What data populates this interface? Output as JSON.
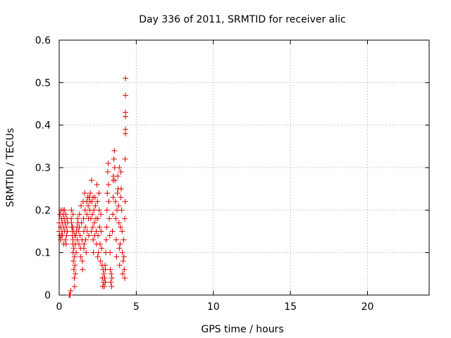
{
  "chart_data": {
    "type": "scatter",
    "title": "Day 336 of 2011, SRMTID for receiver alic",
    "xlabel": "GPS time / hours",
    "ylabel": "SRMTID / TECUs",
    "xlim": [
      0,
      24
    ],
    "ylim": [
      0,
      0.6
    ],
    "x_ticks": [
      0,
      5,
      10,
      15,
      20
    ],
    "x_tick_labels": [
      "0",
      "5",
      "10",
      "15",
      "20"
    ],
    "y_ticks": [
      0,
      0.1,
      0.2,
      0.3,
      0.4,
      0.5,
      0.6
    ],
    "y_tick_labels": [
      "0",
      "0.1",
      "0.2",
      "0.3",
      "0.4",
      "0.5",
      "0.6"
    ],
    "grid": true,
    "marker": "plus",
    "marker_color": "#e00000",
    "series": [
      {
        "name": "SRMTID",
        "points": [
          [
            0.0,
            0.15
          ],
          [
            0.0,
            0.17
          ],
          [
            0.05,
            0.14
          ],
          [
            0.05,
            0.19
          ],
          [
            0.1,
            0.16
          ],
          [
            0.1,
            0.13
          ],
          [
            0.12,
            0.2
          ],
          [
            0.15,
            0.18
          ],
          [
            0.18,
            0.15
          ],
          [
            0.2,
            0.17
          ],
          [
            0.22,
            0.14
          ],
          [
            0.25,
            0.19
          ],
          [
            0.28,
            0.16
          ],
          [
            0.3,
            0.12
          ],
          [
            0.32,
            0.18
          ],
          [
            0.35,
            0.15
          ],
          [
            0.38,
            0.17
          ],
          [
            0.4,
            0.13
          ],
          [
            0.42,
            0.19
          ],
          [
            0.45,
            0.16
          ],
          [
            0.48,
            0.14
          ],
          [
            0.5,
            0.18
          ],
          [
            0.52,
            0.15
          ],
          [
            0.55,
            0.17
          ],
          [
            0.25,
            0.2
          ],
          [
            0.35,
            0.2
          ],
          [
            0.15,
            0.14
          ],
          [
            0.45,
            0.12
          ],
          [
            0.65,
            0.0
          ],
          [
            0.7,
            0.0
          ],
          [
            0.7,
            0.0
          ],
          [
            0.75,
            0.01
          ],
          [
            0.78,
            0.18
          ],
          [
            0.8,
            0.2
          ],
          [
            0.82,
            0.16
          ],
          [
            0.85,
            0.14
          ],
          [
            0.88,
            0.12
          ],
          [
            0.9,
            0.1
          ],
          [
            0.92,
            0.08
          ],
          [
            0.95,
            0.06
          ],
          [
            0.98,
            0.04
          ],
          [
            1.0,
            0.02
          ],
          [
            0.85,
            0.15
          ],
          [
            0.9,
            0.13
          ],
          [
            0.95,
            0.11
          ],
          [
            1.0,
            0.09
          ],
          [
            1.02,
            0.07
          ],
          [
            1.05,
            0.05
          ],
          [
            0.8,
            0.17
          ],
          [
            0.88,
            0.16
          ],
          [
            0.95,
            0.15
          ],
          [
            1.0,
            0.14
          ],
          [
            1.05,
            0.12
          ],
          [
            1.1,
            0.1
          ],
          [
            1.08,
            0.14
          ],
          [
            1.12,
            0.15
          ],
          [
            1.15,
            0.16
          ],
          [
            1.18,
            0.13
          ],
          [
            1.2,
            0.18
          ],
          [
            1.22,
            0.17
          ],
          [
            1.25,
            0.15
          ],
          [
            1.28,
            0.12
          ],
          [
            1.3,
            0.16
          ],
          [
            1.32,
            0.19
          ],
          [
            1.35,
            0.14
          ],
          [
            1.38,
            0.11
          ],
          [
            1.4,
            0.09
          ],
          [
            1.42,
            0.21
          ],
          [
            1.45,
            0.17
          ],
          [
            1.48,
            0.13
          ],
          [
            1.5,
            0.08
          ],
          [
            1.52,
            0.06
          ],
          [
            1.55,
            0.22
          ],
          [
            1.58,
            0.18
          ],
          [
            1.6,
            0.15
          ],
          [
            1.62,
            0.12
          ],
          [
            1.65,
            0.24
          ],
          [
            1.68,
            0.2
          ],
          [
            1.7,
            0.16
          ],
          [
            1.72,
            0.13
          ],
          [
            1.75,
            0.1
          ],
          [
            1.78,
            0.22
          ],
          [
            1.8,
            0.19
          ],
          [
            1.82,
            0.15
          ],
          [
            1.85,
            0.23
          ],
          [
            1.88,
            0.21
          ],
          [
            1.9,
            0.18
          ],
          [
            1.92,
            0.14
          ],
          [
            1.95,
            0.23
          ],
          [
            1.98,
            0.2
          ],
          [
            2.0,
            0.22
          ],
          [
            2.02,
            0.24
          ],
          [
            2.05,
            0.18
          ],
          [
            2.08,
            0.15
          ],
          [
            2.1,
            0.27
          ],
          [
            2.12,
            0.22
          ],
          [
            2.15,
            0.19
          ],
          [
            2.18,
            0.16
          ],
          [
            2.2,
            0.13
          ],
          [
            2.22,
            0.1
          ],
          [
            2.25,
            0.2
          ],
          [
            2.28,
            0.17
          ],
          [
            2.3,
            0.14
          ],
          [
            2.32,
            0.23
          ],
          [
            2.35,
            0.21
          ],
          [
            2.38,
            0.18
          ],
          [
            2.4,
            0.15
          ],
          [
            2.42,
            0.12
          ],
          [
            2.45,
            0.26
          ],
          [
            2.48,
            0.22
          ],
          [
            2.5,
            0.18
          ],
          [
            2.52,
            0.14
          ],
          [
            2.55,
            0.1
          ],
          [
            2.58,
            0.24
          ],
          [
            2.6,
            0.2
          ],
          [
            2.62,
            0.16
          ],
          [
            2.65,
            0.12
          ],
          [
            2.68,
            0.08
          ],
          [
            2.7,
            0.19
          ],
          [
            2.72,
            0.15
          ],
          [
            2.75,
            0.11
          ],
          [
            2.78,
            0.07
          ],
          [
            2.8,
            0.04
          ],
          [
            2.82,
            0.02
          ],
          [
            2.85,
            0.06
          ],
          [
            2.88,
            0.03
          ],
          [
            2.9,
            0.05
          ],
          [
            2.92,
            0.02
          ],
          [
            2.95,
            0.04
          ],
          [
            2.98,
            0.07
          ],
          [
            3.0,
            0.03
          ],
          [
            3.02,
            0.1
          ],
          [
            3.05,
            0.13
          ],
          [
            3.08,
            0.16
          ],
          [
            3.1,
            0.2
          ],
          [
            3.12,
            0.24
          ],
          [
            3.15,
            0.29
          ],
          [
            3.18,
            0.31
          ],
          [
            3.2,
            0.26
          ],
          [
            3.22,
            0.22
          ],
          [
            3.25,
            0.18
          ],
          [
            3.28,
            0.14
          ],
          [
            3.3,
            0.1
          ],
          [
            3.32,
            0.06
          ],
          [
            3.35,
            0.03
          ],
          [
            3.38,
            0.05
          ],
          [
            3.4,
            0.02
          ],
          [
            3.42,
            0.04
          ],
          [
            3.45,
            0.15
          ],
          [
            3.48,
            0.19
          ],
          [
            3.5,
            0.23
          ],
          [
            3.52,
            0.28
          ],
          [
            3.55,
            0.32
          ],
          [
            3.58,
            0.34
          ],
          [
            3.6,
            0.3
          ],
          [
            3.62,
            0.27
          ],
          [
            3.65,
            0.22
          ],
          [
            3.68,
            0.18
          ],
          [
            3.7,
            0.13
          ],
          [
            3.72,
            0.09
          ],
          [
            3.75,
            0.2
          ],
          [
            3.78,
            0.24
          ],
          [
            3.8,
            0.28
          ],
          [
            3.82,
            0.25
          ],
          [
            3.85,
            0.21
          ],
          [
            3.88,
            0.17
          ],
          [
            3.9,
            0.11
          ],
          [
            3.92,
            0.07
          ],
          [
            3.95,
            0.12
          ],
          [
            3.98,
            0.16
          ],
          [
            4.0,
            0.29
          ],
          [
            4.02,
            0.25
          ],
          [
            4.05,
            0.2
          ],
          [
            4.08,
            0.15
          ],
          [
            4.1,
            0.1
          ],
          [
            4.12,
            0.05
          ],
          [
            4.15,
            0.08
          ],
          [
            4.18,
            0.13
          ],
          [
            4.2,
            0.09
          ],
          [
            4.22,
            0.06
          ],
          [
            4.25,
            0.04
          ],
          [
            4.28,
            0.32
          ],
          [
            4.3,
            0.38
          ],
          [
            4.3,
            0.42
          ],
          [
            4.3,
            0.51
          ],
          [
            4.3,
            0.47
          ],
          [
            4.3,
            0.43
          ],
          [
            4.3,
            0.39
          ],
          [
            4.28,
            0.22
          ],
          [
            4.25,
            0.18
          ],
          [
            3.5,
            0.27
          ],
          [
            2.2,
            0.23
          ],
          [
            1.6,
            0.11
          ],
          [
            0.9,
            0.19
          ],
          [
            3.0,
            0.06
          ],
          [
            2.5,
            0.09
          ],
          [
            3.9,
            0.3
          ],
          [
            4.0,
            0.23
          ]
        ]
      }
    ]
  }
}
